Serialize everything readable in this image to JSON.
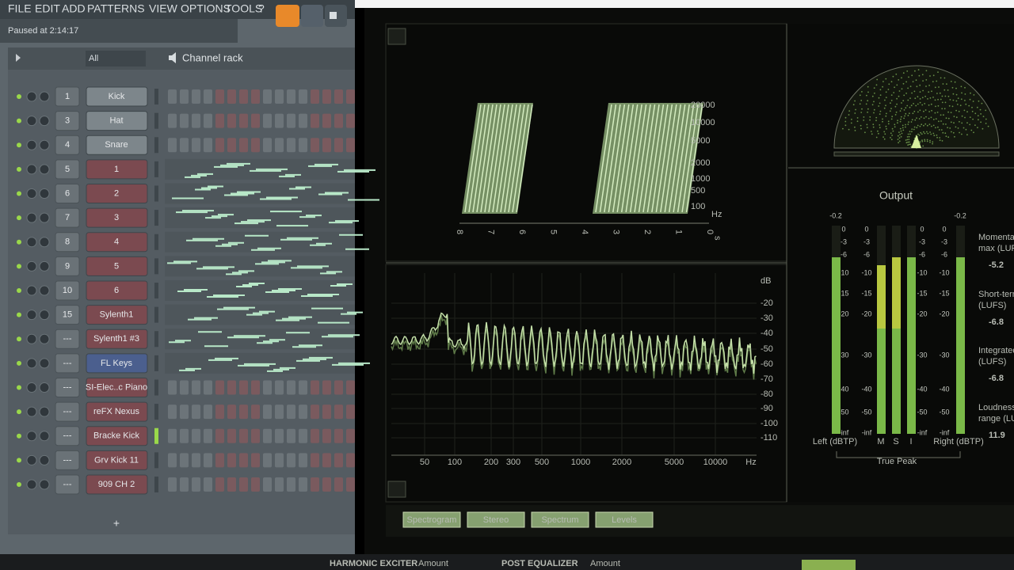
{
  "menu": [
    "FILE",
    "EDIT",
    "ADD",
    "PATTERNS",
    "VIEW",
    "OPTIONS",
    "TOOLS",
    "?"
  ],
  "status": "Paused at 2:14:17",
  "channel_rack": {
    "filter": "All",
    "title": "Channel rack",
    "add": "+",
    "channels": [
      {
        "number": "1",
        "name": "Kick"
      },
      {
        "number": "3",
        "name": "Hat"
      },
      {
        "number": "4",
        "name": "Snare"
      },
      {
        "number": "5",
        "name": "1"
      },
      {
        "number": "6",
        "name": "2"
      },
      {
        "number": "7",
        "name": "3"
      },
      {
        "number": "8",
        "name": "4"
      },
      {
        "number": "9",
        "name": "5"
      },
      {
        "number": "10",
        "name": "6"
      },
      {
        "number": "15",
        "name": "Sylenth1"
      },
      {
        "number": "---",
        "name": "Sylenth1 #3"
      },
      {
        "number": "---",
        "name": "FL Keys"
      },
      {
        "number": "---",
        "name": "SI-Elec..c Piano"
      },
      {
        "number": "---",
        "name": "reFX Nexus"
      },
      {
        "number": "---",
        "name": "Bracke Kick"
      },
      {
        "number": "---",
        "name": "Grv Kick 11"
      },
      {
        "number": "---",
        "name": "909 CH 2"
      }
    ]
  },
  "plugin": {
    "spectrogram": {
      "freq_labels": [
        "20000",
        "10000",
        "5000",
        "2000",
        "1000",
        "500",
        "100",
        "Hz"
      ],
      "time_labels": [
        "8",
        "7",
        "6",
        "5",
        "4",
        "3",
        "2",
        "1",
        "0",
        "s"
      ]
    },
    "spectrum": {
      "db_labels": [
        "dB",
        "-20",
        "-30",
        "-40",
        "-50",
        "-60",
        "-70",
        "-80",
        "-90",
        "-100",
        "-110"
      ],
      "freq_labels": [
        "50",
        "100",
        "200",
        "300",
        "500",
        "1000",
        "2000",
        "5000",
        "10000",
        "Hz"
      ]
    },
    "levels": {
      "title": "Output",
      "peak_left": "-0.2",
      "peak_right": "-0.2",
      "scale": [
        "0",
        "-3",
        "-6",
        "-10",
        "-15",
        "-20",
        "-30",
        "-40",
        "-50",
        "-inf"
      ],
      "left": "Left (dBTP)",
      "mid": "M",
      "side": "S",
      "integrated": "I",
      "right": "Right (dBTP)",
      "true_peak": "True Peak"
    },
    "loudness": [
      {
        "label": [
          "Momentary",
          "max (LUFS)"
        ],
        "value": "-5.2"
      },
      {
        "label": [
          "Short-term",
          "(LUFS)"
        ],
        "value": "-6.8"
      },
      {
        "label": [
          "Integrated",
          "(LUFS)"
        ],
        "value": "-6.8"
      },
      {
        "label": [
          "Loudness",
          "range (LU)"
        ],
        "value": "11.9"
      }
    ],
    "tabs": [
      "Spectrogram",
      "Stereo",
      "Spectrum",
      "Levels"
    ]
  },
  "footer": [
    "HARMONIC EXCITER",
    "Amount",
    "POST EQUALIZER",
    "Amount"
  ]
}
